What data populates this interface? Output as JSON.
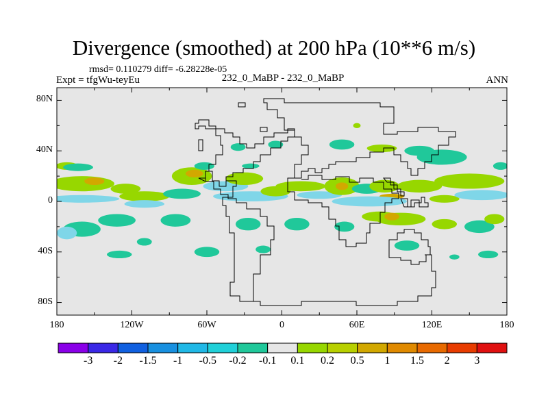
{
  "title": "Divergence (smoothed) at 200 hPa (10**6 m/s)",
  "stats_line": "rmsd= 0.110279 diff= -6.28228e-05",
  "expt_line": "Expt = tfgWu-teyEu",
  "case_line": "232_0_MaBP - 232_0_MaBP",
  "season": "ANN",
  "map": {
    "background": "#e6e6e6",
    "y_ticks": [
      {
        "label": "80N",
        "lat": 80
      },
      {
        "label": "40N",
        "lat": 40
      },
      {
        "label": "0",
        "lat": 0
      },
      {
        "label": "40S",
        "lat": -40
      },
      {
        "label": "80S",
        "lat": -80
      }
    ],
    "x_ticks": [
      {
        "label": "180",
        "lon": -180
      },
      {
        "label": "120W",
        "lon": -120
      },
      {
        "label": "60W",
        "lon": -60
      },
      {
        "label": "0",
        "lon": 0
      },
      {
        "label": "60E",
        "lon": 60
      },
      {
        "label": "120E",
        "lon": 120
      },
      {
        "label": "180",
        "lon": 180
      }
    ],
    "anomalies": [
      {
        "lon": -172,
        "lat": 28,
        "rx": 9,
        "ry": 3,
        "c": "#97d700"
      },
      {
        "lon": -160,
        "lat": 14,
        "rx": 26,
        "ry": 6,
        "c": "#97d700"
      },
      {
        "lon": -150,
        "lat": 16,
        "rx": 8,
        "ry": 3,
        "c": "#d2a800"
      },
      {
        "lon": -163,
        "lat": 27,
        "rx": 12,
        "ry": 3,
        "c": "#20c89a"
      },
      {
        "lon": -125,
        "lat": 10,
        "rx": 12,
        "ry": 4,
        "c": "#97d700"
      },
      {
        "lon": -160,
        "lat": 2,
        "rx": 30,
        "ry": 3,
        "c": "#7fd6e8"
      },
      {
        "lon": -110,
        "lat": 4,
        "rx": 20,
        "ry": 4,
        "c": "#97d700"
      },
      {
        "lon": -110,
        "lat": -2,
        "rx": 16,
        "ry": 3,
        "c": "#7fd6e8"
      },
      {
        "lon": -72,
        "lat": 20,
        "rx": 16,
        "ry": 7,
        "c": "#97d700"
      },
      {
        "lon": -70,
        "lat": 22,
        "rx": 7,
        "ry": 3,
        "c": "#d2a800"
      },
      {
        "lon": -80,
        "lat": 6,
        "rx": 15,
        "ry": 4,
        "c": "#20c89a"
      },
      {
        "lon": -62,
        "lat": 28,
        "rx": 8,
        "ry": 3,
        "c": "#20c89a"
      },
      {
        "lon": -45,
        "lat": 12,
        "rx": 18,
        "ry": 4,
        "c": "#7fd6e8"
      },
      {
        "lon": -30,
        "lat": 18,
        "rx": 15,
        "ry": 5,
        "c": "#97d700"
      },
      {
        "lon": -25,
        "lat": 28,
        "rx": 7,
        "ry": 2,
        "c": "#20c89a"
      },
      {
        "lon": -25,
        "lat": 4,
        "rx": 30,
        "ry": 4,
        "c": "#7fd6e8"
      },
      {
        "lon": -5,
        "lat": 8,
        "rx": 12,
        "ry": 4,
        "c": "#97d700"
      },
      {
        "lon": 15,
        "lat": 12,
        "rx": 20,
        "ry": 4,
        "c": "#97d700"
      },
      {
        "lon": 30,
        "lat": 5,
        "rx": 18,
        "ry": 3,
        "c": "#7fd6e8"
      },
      {
        "lon": 48,
        "lat": 12,
        "rx": 14,
        "ry": 7,
        "c": "#97d700"
      },
      {
        "lon": 48,
        "lat": 12,
        "rx": 5,
        "ry": 3,
        "c": "#d2a800"
      },
      {
        "lon": 68,
        "lat": 10,
        "rx": 12,
        "ry": 4,
        "c": "#20c89a"
      },
      {
        "lon": 82,
        "lat": 12,
        "rx": 12,
        "ry": 5,
        "c": "#97d700"
      },
      {
        "lon": 88,
        "lat": 4,
        "rx": 10,
        "ry": 2,
        "c": "#d2a800"
      },
      {
        "lon": 110,
        "lat": 12,
        "rx": 18,
        "ry": 5,
        "c": "#97d700"
      },
      {
        "lon": 70,
        "lat": 0,
        "rx": 30,
        "ry": 4,
        "c": "#7fd6e8"
      },
      {
        "lon": 130,
        "lat": 2,
        "rx": 12,
        "ry": 3,
        "c": "#97d700"
      },
      {
        "lon": 150,
        "lat": 16,
        "rx": 28,
        "ry": 6,
        "c": "#97d700"
      },
      {
        "lon": 160,
        "lat": 5,
        "rx": 22,
        "ry": 4,
        "c": "#7fd6e8"
      },
      {
        "lon": 175,
        "lat": 28,
        "rx": 6,
        "ry": 3,
        "c": "#20c89a"
      },
      {
        "lon": 128,
        "lat": 35,
        "rx": 20,
        "ry": 6,
        "c": "#20c89a"
      },
      {
        "lon": 110,
        "lat": 40,
        "rx": 12,
        "ry": 4,
        "c": "#20c89a"
      },
      {
        "lon": 80,
        "lat": 42,
        "rx": 12,
        "ry": 3,
        "c": "#97d700"
      },
      {
        "lon": 48,
        "lat": 45,
        "rx": 10,
        "ry": 4,
        "c": "#20c89a"
      },
      {
        "lon": 60,
        "lat": 60,
        "rx": 3,
        "ry": 2,
        "c": "#97d700"
      },
      {
        "lon": -35,
        "lat": 43,
        "rx": 6,
        "ry": 3,
        "c": "#20c89a"
      },
      {
        "lon": -5,
        "lat": 45,
        "rx": 6,
        "ry": 3,
        "c": "#20c89a"
      },
      {
        "lon": -160,
        "lat": -22,
        "rx": 15,
        "ry": 6,
        "c": "#20c89a"
      },
      {
        "lon": -172,
        "lat": -25,
        "rx": 8,
        "ry": 5,
        "c": "#7fd6e8"
      },
      {
        "lon": -132,
        "lat": -15,
        "rx": 15,
        "ry": 5,
        "c": "#20c89a"
      },
      {
        "lon": -110,
        "lat": -32,
        "rx": 6,
        "ry": 3,
        "c": "#20c89a"
      },
      {
        "lon": -130,
        "lat": -42,
        "rx": 10,
        "ry": 3,
        "c": "#20c89a"
      },
      {
        "lon": -85,
        "lat": -15,
        "rx": 12,
        "ry": 5,
        "c": "#20c89a"
      },
      {
        "lon": -60,
        "lat": -40,
        "rx": 10,
        "ry": 4,
        "c": "#20c89a"
      },
      {
        "lon": -27,
        "lat": -18,
        "rx": 10,
        "ry": 5,
        "c": "#20c89a"
      },
      {
        "lon": -15,
        "lat": -38,
        "rx": 6,
        "ry": 3,
        "c": "#20c89a"
      },
      {
        "lon": 12,
        "lat": -18,
        "rx": 10,
        "ry": 5,
        "c": "#20c89a"
      },
      {
        "lon": 50,
        "lat": -20,
        "rx": 8,
        "ry": 4,
        "c": "#20c89a"
      },
      {
        "lon": 78,
        "lat": -12,
        "rx": 14,
        "ry": 4,
        "c": "#97d700"
      },
      {
        "lon": 95,
        "lat": -14,
        "rx": 20,
        "ry": 5,
        "c": "#97d700"
      },
      {
        "lon": 88,
        "lat": -12,
        "rx": 6,
        "ry": 3,
        "c": "#d2a800"
      },
      {
        "lon": 130,
        "lat": -18,
        "rx": 10,
        "ry": 4,
        "c": "#97d700"
      },
      {
        "lon": 158,
        "lat": -20,
        "rx": 12,
        "ry": 5,
        "c": "#20c89a"
      },
      {
        "lon": 170,
        "lat": -14,
        "rx": 8,
        "ry": 4,
        "c": "#97d700"
      },
      {
        "lon": 100,
        "lat": -35,
        "rx": 10,
        "ry": 4,
        "c": "#20c89a"
      },
      {
        "lon": 165,
        "lat": -42,
        "rx": 8,
        "ry": 3,
        "c": "#20c89a"
      },
      {
        "lon": 138,
        "lat": -44,
        "rx": 4,
        "ry": 2,
        "c": "#20c89a"
      }
    ]
  },
  "colorbar": {
    "colors": [
      "#8a00e8",
      "#3a28e6",
      "#1060e0",
      "#1890e0",
      "#20b8e6",
      "#20d0d8",
      "#20c89a",
      "#e6e6e6",
      "#97d700",
      "#b8d000",
      "#d2a800",
      "#e08a00",
      "#e86a00",
      "#e83c00",
      "#e01010"
    ],
    "labels": [
      "-3",
      "-2",
      "-1.5",
      "-1",
      "-0.5",
      "-0.2",
      "-0.1",
      "0.1",
      "0.2",
      "0.5",
      "1",
      "1.5",
      "2",
      "3"
    ]
  }
}
